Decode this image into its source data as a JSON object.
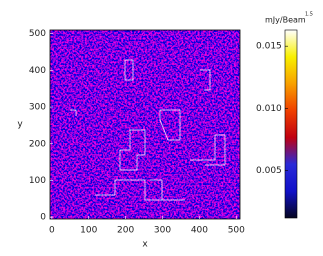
{
  "chart_data": {
    "type": "heatmap",
    "xlabel": "x",
    "ylabel": "y",
    "xlim": [
      -5,
      510
    ],
    "ylim": [
      -5,
      510
    ],
    "xticks": [
      0,
      100,
      200,
      300,
      400,
      500
    ],
    "yticks": [
      0,
      100,
      200,
      300,
      400,
      500
    ],
    "colorbar": {
      "label": "mJy/Beam",
      "label_exponent": "1.5",
      "lim": [
        0.0012,
        0.0163
      ],
      "ticks": [
        0.005,
        {
          "value": 0.01,
          "label": "0.010"
        },
        0.015
      ],
      "colors": [
        "#050520",
        "#1010c8",
        "#2a2ad8",
        "#c00010",
        "#f04000",
        "#f8a000",
        "#f8f000",
        "#ffffff"
      ]
    }
  }
}
